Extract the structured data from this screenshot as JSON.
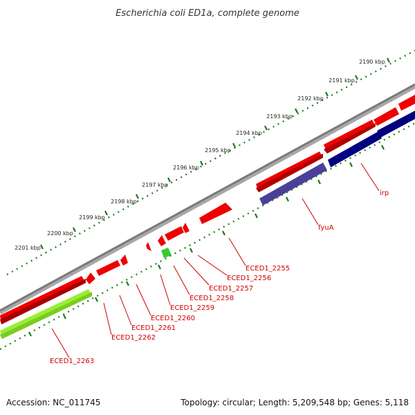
{
  "title": "Escherichia coli ED1a, complete genome",
  "footer": {
    "accession": "Accession: NC_011745",
    "summary": "Topology: circular; Length: 5,209,548 bp; Genes: 5,118"
  },
  "colors": {
    "backbone": "#808080",
    "forward_gene": "#ee0000",
    "reverse_gene_highlight": "#000080",
    "reverse_gene_mid": "#4b3f9a",
    "reverse_gene_small": "#33cc33",
    "reverse_gene_large": "#99ee33",
    "tick": "#1a7a1a",
    "label": "#cc0000"
  },
  "scale_labels": [
    "2190 kbp",
    "2191 kbp",
    "2192 kbp",
    "2193 kbp",
    "2194 kbp",
    "2195 kbp",
    "2196 kbp",
    "2197 kbp",
    "2198 kbp",
    "2199 kbp",
    "2200 kbp",
    "2201 kbp"
  ],
  "gene_labels": [
    "irp",
    "fyuA",
    "ECED1_2255",
    "ECED1_2256",
    "ECED1_2257",
    "ECED1_2258",
    "ECED1_2259",
    "ECED1_2260",
    "ECED1_2261",
    "ECED1_2262",
    "ECED1_2263"
  ]
}
